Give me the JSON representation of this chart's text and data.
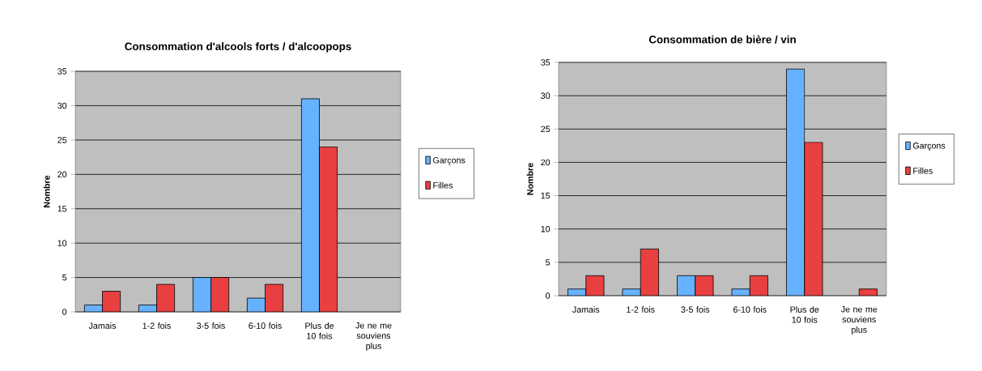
{
  "chart_data": [
    {
      "type": "bar",
      "title": "Consommation d'alcools forts / d'alcoopops",
      "ylabel": "Nombre",
      "categories": [
        "Jamais",
        "1-2 fois",
        "3-5 fois",
        "6-10 fois",
        "Plus de 10 fois",
        "Je ne me souviens plus"
      ],
      "series": [
        {
          "name": "Garçons",
          "color": "#66b2ff",
          "values": [
            1,
            1,
            5,
            2,
            31,
            null
          ]
        },
        {
          "name": "Filles",
          "color": "#e84040",
          "values": [
            3,
            4,
            5,
            4,
            24,
            null
          ]
        }
      ],
      "ylim": [
        0,
        35
      ],
      "yticks": [
        0,
        5,
        10,
        15,
        20,
        25,
        30,
        35
      ],
      "grid": "y",
      "legend": "right"
    },
    {
      "type": "bar",
      "title": "Consommation de bière / vin",
      "ylabel": "Nombre",
      "categories": [
        "Jamais",
        "1-2 fois",
        "3-5 fois",
        "6-10 fois",
        "Plus de 10 fois",
        "Je ne me souviens plus"
      ],
      "series": [
        {
          "name": "Garçons",
          "color": "#66b2ff",
          "values": [
            1,
            1,
            3,
            1,
            34,
            null
          ]
        },
        {
          "name": "Filles",
          "color": "#e84040",
          "values": [
            3,
            7,
            3,
            3,
            23,
            1
          ]
        }
      ],
      "ylim": [
        0,
        35
      ],
      "yticks": [
        0,
        5,
        10,
        15,
        20,
        25,
        30,
        35
      ],
      "grid": "y",
      "legend": "right"
    }
  ]
}
